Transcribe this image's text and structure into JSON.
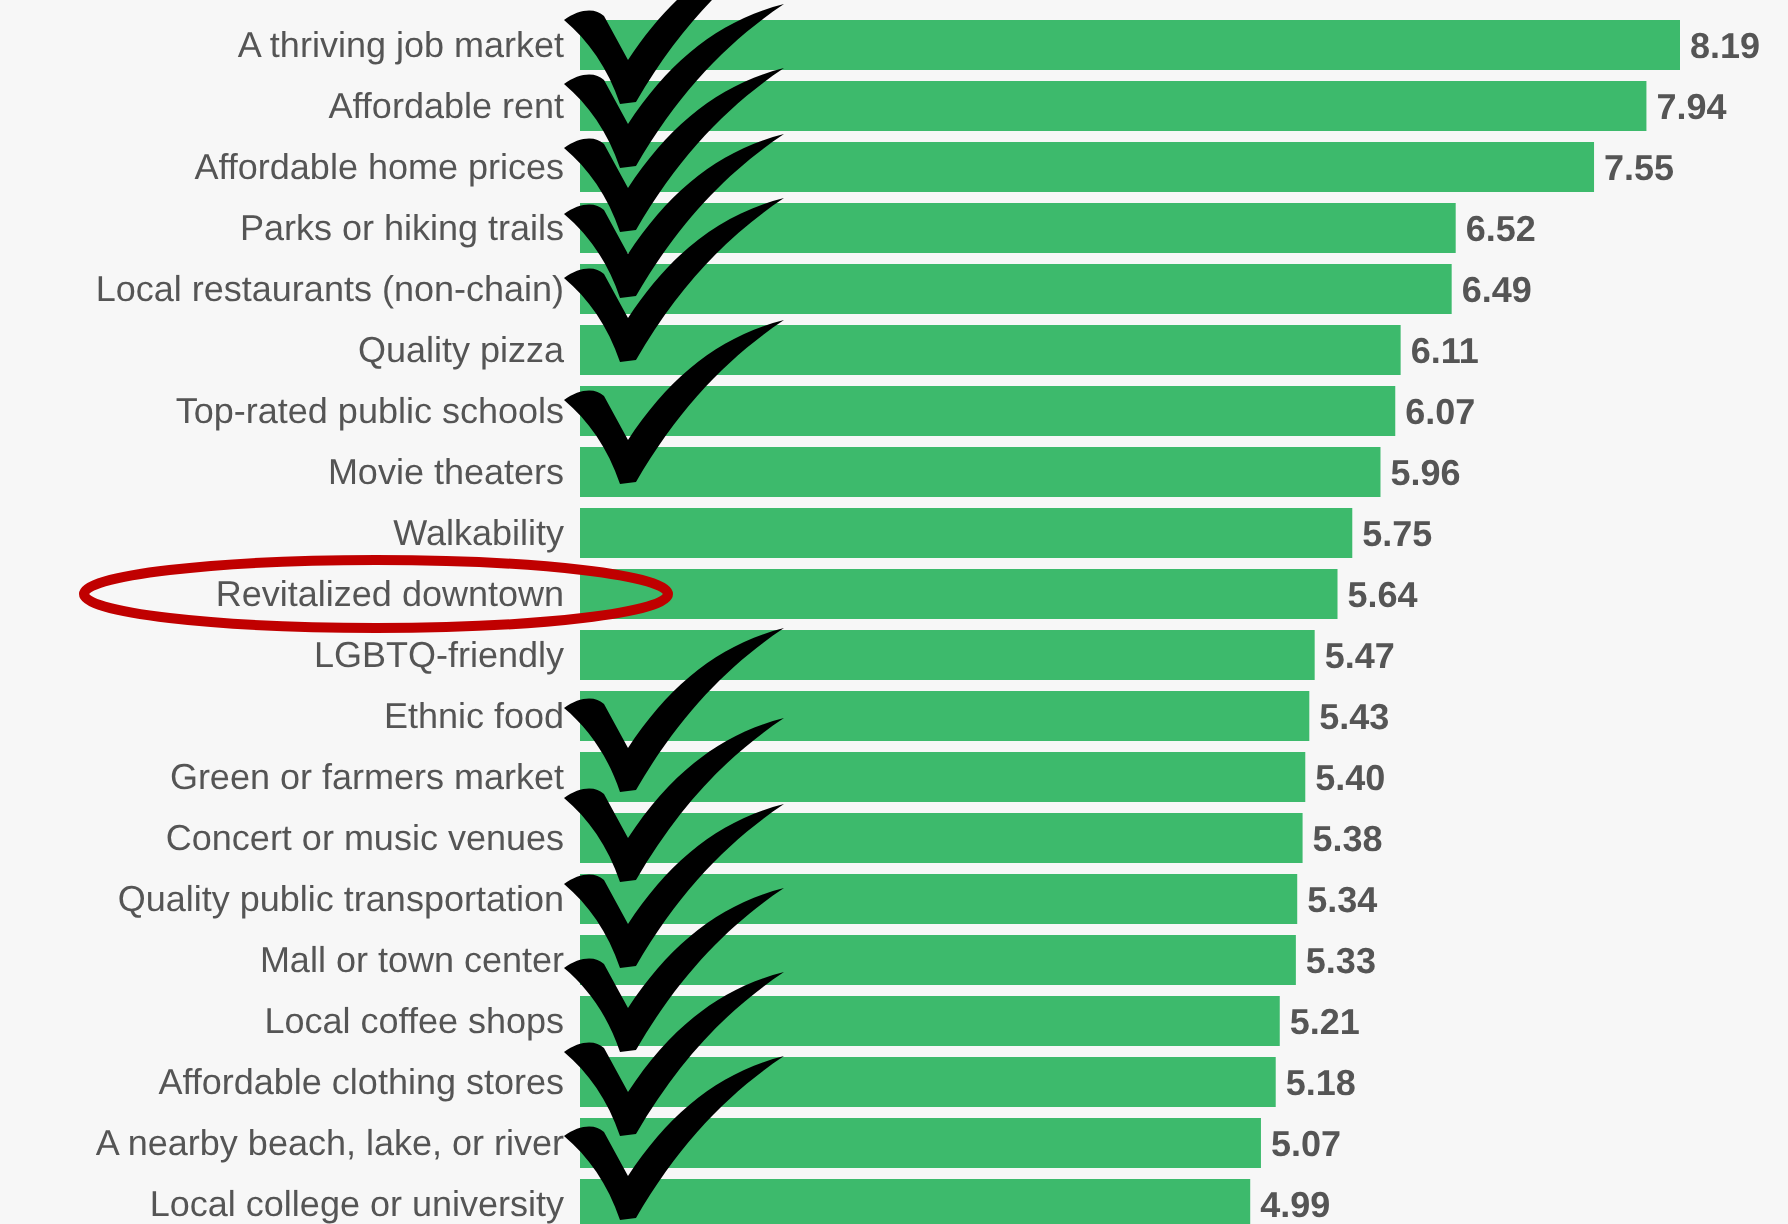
{
  "chart_data": {
    "type": "bar",
    "orientation": "horizontal",
    "color": "#3dba6c",
    "categories": [
      "A thriving job market",
      "Affordable rent",
      "Affordable home prices",
      "Parks or hiking trails",
      "Local restaurants (non-chain)",
      "Quality pizza",
      "Top-rated public schools",
      "Movie theaters",
      "Walkability",
      "Revitalized downtown",
      "LGBTQ-friendly",
      "Ethnic food",
      "Green or farmers market",
      "Concert or music venues",
      "Quality public transportation",
      "Mall or town center",
      "Local coffee shops",
      "Affordable clothing stores",
      "A nearby beach, lake, or river",
      "Local college or university"
    ],
    "values": [
      8.19,
      7.94,
      7.55,
      6.52,
      6.49,
      6.11,
      6.07,
      5.96,
      5.75,
      5.64,
      5.47,
      5.43,
      5.4,
      5.38,
      5.34,
      5.33,
      5.21,
      5.18,
      5.07,
      4.99
    ],
    "value_labels": [
      "8.19",
      "7.94",
      "7.55",
      "6.52",
      "6.49",
      "6.11",
      "6.07",
      "5.96",
      "5.75",
      "5.64",
      "5.47",
      "5.43",
      "5.40",
      "5.38",
      "5.34",
      "5.33",
      "5.21",
      "5.18",
      "5.07",
      "4.99"
    ]
  }
}
